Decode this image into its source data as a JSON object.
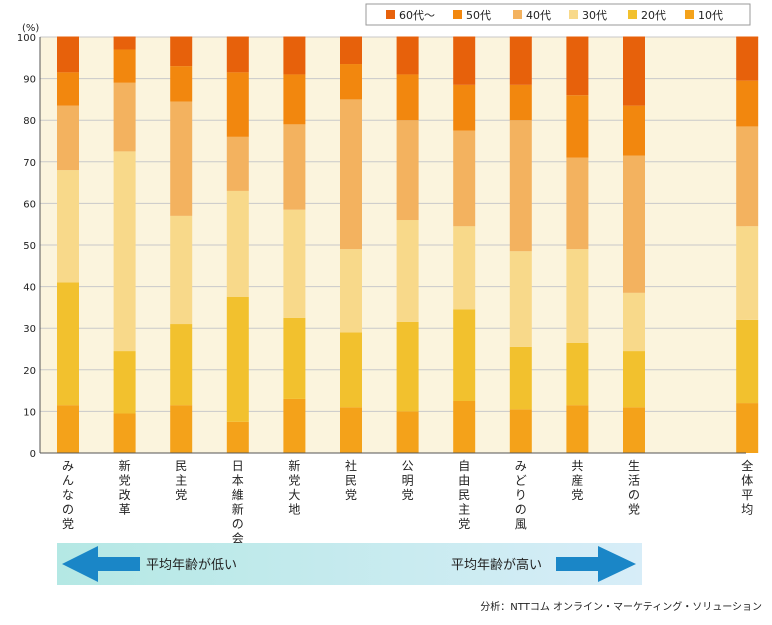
{
  "chart_data": {
    "type": "bar",
    "stacked": true,
    "ylabel": "(%)",
    "ylim": [
      0,
      100
    ],
    "yticks": [
      0,
      10,
      20,
      30,
      40,
      50,
      60,
      70,
      80,
      90,
      100
    ],
    "legend_position": "top-right",
    "categories": [
      "みんなの党",
      "新党改革",
      "民主党",
      "日本維新の会",
      "新党大地",
      "社民党",
      "公明党",
      "自由民主党",
      "みどりの風",
      "共産党",
      "生活の党",
      "全体平均"
    ],
    "series": [
      {
        "name": "10代",
        "color": "#f4a21a",
        "values": [
          11.5,
          9.5,
          11.5,
          7.5,
          13,
          11,
          10,
          12.5,
          10.5,
          11.5,
          11,
          12
        ]
      },
      {
        "name": "20代",
        "color": "#f2c12e",
        "values": [
          29.5,
          15,
          19.5,
          30,
          19.5,
          18,
          21.5,
          22,
          15,
          15,
          13.5,
          20
        ]
      },
      {
        "name": "30代",
        "color": "#f8d98a",
        "values": [
          27,
          48,
          26,
          25.5,
          26,
          20,
          24.5,
          20,
          23,
          22.5,
          14,
          22.5
        ]
      },
      {
        "name": "40代",
        "color": "#f3b25f",
        "values": [
          15.5,
          16.5,
          27.5,
          13,
          20.5,
          36,
          24,
          23,
          31.5,
          22,
          33,
          24
        ]
      },
      {
        "name": "50代",
        "color": "#f2870e",
        "values": [
          8,
          8,
          8.5,
          15.5,
          12,
          8.5,
          11,
          11,
          8.5,
          15,
          12,
          11
        ]
      },
      {
        "name": "60代～",
        "color": "#e7610b",
        "values": [
          8.5,
          3,
          7,
          8.5,
          9,
          6.5,
          9,
          11.5,
          11.5,
          14,
          16.5,
          10.5
        ]
      }
    ],
    "grid": true,
    "annotations": {
      "left_arrow": "平均年齢が低い",
      "right_arrow": "平均年齢が高い"
    }
  },
  "credit": "分析：NTTコム オンライン・マーケティング・ソリューション"
}
